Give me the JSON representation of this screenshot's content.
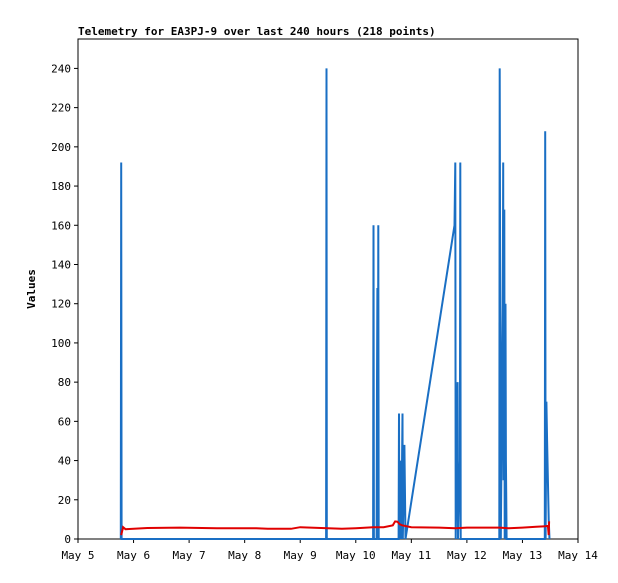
{
  "chart_data": {
    "type": "line",
    "title": "Telemetry for EA3PJ-9 over last 240 hours (218 points)",
    "xlabel": "",
    "ylabel": "Values",
    "x_range": [
      "2024-05-05 00:00",
      "2024-05-14 00:00"
    ],
    "x_tick_labels": [
      "May 5",
      "May 6",
      "May 7",
      "May 8",
      "May 9",
      "May 10",
      "May 11",
      "May 12",
      "May 13",
      "May 14"
    ],
    "y_range": [
      0,
      255
    ],
    "y_ticks": [
      0,
      20,
      40,
      60,
      80,
      100,
      120,
      140,
      160,
      180,
      200,
      220,
      240
    ],
    "grid": false,
    "legend": "none",
    "series": [
      {
        "color": "#1a6fc4",
        "points": [
          [
            "2024-05-05 18:30",
            0
          ],
          [
            "2024-05-05 18:40",
            192
          ],
          [
            "2024-05-05 18:50",
            0
          ],
          [
            "2024-05-09 11:10",
            0
          ],
          [
            "2024-05-09 11:20",
            240
          ],
          [
            "2024-05-09 11:30",
            0
          ],
          [
            "2024-05-10 07:30",
            0
          ],
          [
            "2024-05-10 07:40",
            160
          ],
          [
            "2024-05-10 07:50",
            0
          ],
          [
            "2024-05-10 09:00",
            0
          ],
          [
            "2024-05-10 09:10",
            80
          ],
          [
            "2024-05-10 09:20",
            128
          ],
          [
            "2024-05-10 09:30",
            0
          ],
          [
            "2024-05-10 09:45",
            160
          ],
          [
            "2024-05-10 09:55",
            0
          ],
          [
            "2024-05-10 18:30",
            0
          ],
          [
            "2024-05-10 18:40",
            64
          ],
          [
            "2024-05-10 18:50",
            0
          ],
          [
            "2024-05-10 19:30",
            40
          ],
          [
            "2024-05-10 19:40",
            0
          ],
          [
            "2024-05-10 20:10",
            64
          ],
          [
            "2024-05-10 20:20",
            0
          ],
          [
            "2024-05-10 21:00",
            48
          ],
          [
            "2024-05-10 21:30",
            0
          ],
          [
            "2024-05-11 18:40",
            160
          ],
          [
            "2024-05-11 19:00",
            192
          ],
          [
            "2024-05-11 19:10",
            0
          ],
          [
            "2024-05-11 20:00",
            80
          ],
          [
            "2024-05-11 20:10",
            0
          ],
          [
            "2024-05-11 21:00",
            40
          ],
          [
            "2024-05-11 21:10",
            192
          ],
          [
            "2024-05-11 21:20",
            0
          ],
          [
            "2024-05-12 14:00",
            0
          ],
          [
            "2024-05-12 14:10",
            240
          ],
          [
            "2024-05-12 14:20",
            146
          ],
          [
            "2024-05-12 14:30",
            96
          ],
          [
            "2024-05-12 14:40",
            0
          ],
          [
            "2024-05-12 15:30",
            120
          ],
          [
            "2024-05-12 15:40",
            192
          ],
          [
            "2024-05-12 15:50",
            30
          ],
          [
            "2024-05-12 16:10",
            168
          ],
          [
            "2024-05-12 16:20",
            0
          ],
          [
            "2024-05-12 16:40",
            120
          ],
          [
            "2024-05-12 16:50",
            40
          ],
          [
            "2024-05-12 17:00",
            24
          ],
          [
            "2024-05-12 17:10",
            0
          ],
          [
            "2024-05-13 09:40",
            0
          ],
          [
            "2024-05-13 09:50",
            208
          ],
          [
            "2024-05-13 10:00",
            0
          ],
          [
            "2024-05-13 10:20",
            70
          ],
          [
            "2024-05-13 10:40",
            50
          ],
          [
            "2024-05-13 11:00",
            30
          ],
          [
            "2024-05-13 11:20",
            10
          ],
          [
            "2024-05-13 11:40",
            0
          ]
        ]
      },
      {
        "color": "#e00000",
        "points": [
          [
            "2024-05-05 18:40",
            2
          ],
          [
            "2024-05-05 19:30",
            6
          ],
          [
            "2024-05-05 20:30",
            5
          ],
          [
            "2024-05-06 06:00",
            5.6
          ],
          [
            "2024-05-06 20:00",
            5.8
          ],
          [
            "2024-05-07 12:00",
            5.5
          ],
          [
            "2024-05-08 05:00",
            5.5
          ],
          [
            "2024-05-08 10:00",
            5.2
          ],
          [
            "2024-05-08 20:00",
            5.2
          ],
          [
            "2024-05-09 00:00",
            6.0
          ],
          [
            "2024-05-09 12:00",
            5.5
          ],
          [
            "2024-05-09 18:00",
            5.2
          ],
          [
            "2024-05-10 00:00",
            5.5
          ],
          [
            "2024-05-10 07:30",
            6.0
          ],
          [
            "2024-05-10 12:00",
            6.0
          ],
          [
            "2024-05-10 16:00",
            7
          ],
          [
            "2024-05-10 17:00",
            9
          ],
          [
            "2024-05-10 18:00",
            8.8
          ],
          [
            "2024-05-10 19:00",
            7.5
          ],
          [
            "2024-05-10 20:00",
            7
          ],
          [
            "2024-05-11 00:00",
            6.0
          ],
          [
            "2024-05-11 12:00",
            5.8
          ],
          [
            "2024-05-11 19:00",
            5.5
          ],
          [
            "2024-05-12 00:00",
            5.8
          ],
          [
            "2024-05-12 14:00",
            5.8
          ],
          [
            "2024-05-12 18:00",
            5.5
          ],
          [
            "2024-05-13 00:00",
            5.8
          ],
          [
            "2024-05-13 06:00",
            6.2
          ],
          [
            "2024-05-13 10:00",
            6.5
          ],
          [
            "2024-05-13 11:00",
            6.8
          ],
          [
            "2024-05-13 11:20",
            2
          ],
          [
            "2024-05-13 11:30",
            9
          ]
        ]
      }
    ]
  }
}
